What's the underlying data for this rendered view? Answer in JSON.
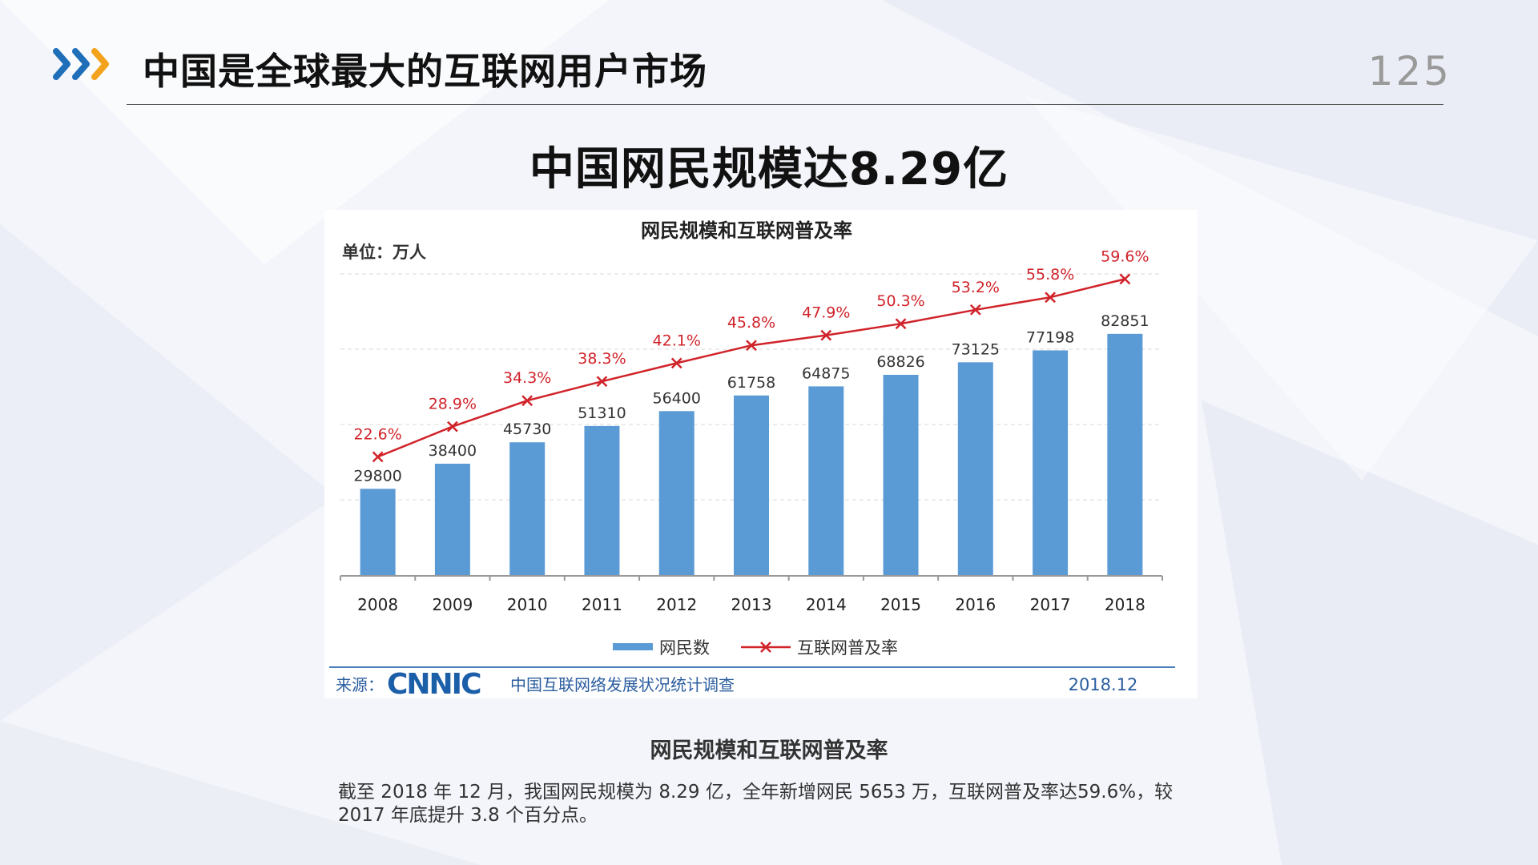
{
  "slide": {
    "title": "中国是全球最大的互联网用户市场",
    "page_number": "125",
    "heading": "中国网民规模达8.29亿",
    "caption": "网民规模和互联网普及率",
    "description": "截至 2018 年 12 月，我国网民规模为 8.29 亿，全年新增网民 5653 万，互联网普及率达59.6%，较 2017 年底提升 3.8 个百分点。",
    "colors": {
      "bar": "#5b9bd5",
      "line": "#d0232a",
      "chevron_blue": "#1f6fb8",
      "chevron_orange": "#f2a31b"
    }
  },
  "chart_data": {
    "type": "bar",
    "title": "网民规模和互联网普及率",
    "unit_label": "单位：万人",
    "categories": [
      "2008",
      "2009",
      "2010",
      "2011",
      "2012",
      "2013",
      "2014",
      "2015",
      "2016",
      "2017",
      "2018"
    ],
    "series": [
      {
        "name": "网民数",
        "type": "bar",
        "values": [
          29800,
          38400,
          45730,
          51310,
          56400,
          61758,
          64875,
          68826,
          73125,
          77198,
          82851
        ]
      },
      {
        "name": "互联网普及率",
        "type": "line",
        "values": [
          22.6,
          28.9,
          34.3,
          38.3,
          42.1,
          45.8,
          47.9,
          50.3,
          53.2,
          55.8,
          59.6
        ],
        "labels": [
          "22.6%",
          "28.9%",
          "34.3%",
          "38.3%",
          "42.1%",
          "45.8%",
          "47.9%",
          "50.3%",
          "53.2%",
          "55.8%",
          "59.6%"
        ]
      }
    ],
    "legend": [
      "网民数",
      "互联网普及率"
    ],
    "legend_position": "bottom",
    "grid": true,
    "source": {
      "prefix": "来源：",
      "logo": "CNNIC",
      "org": "中国互联网络发展状况统计调查",
      "date": "2018.12"
    }
  }
}
